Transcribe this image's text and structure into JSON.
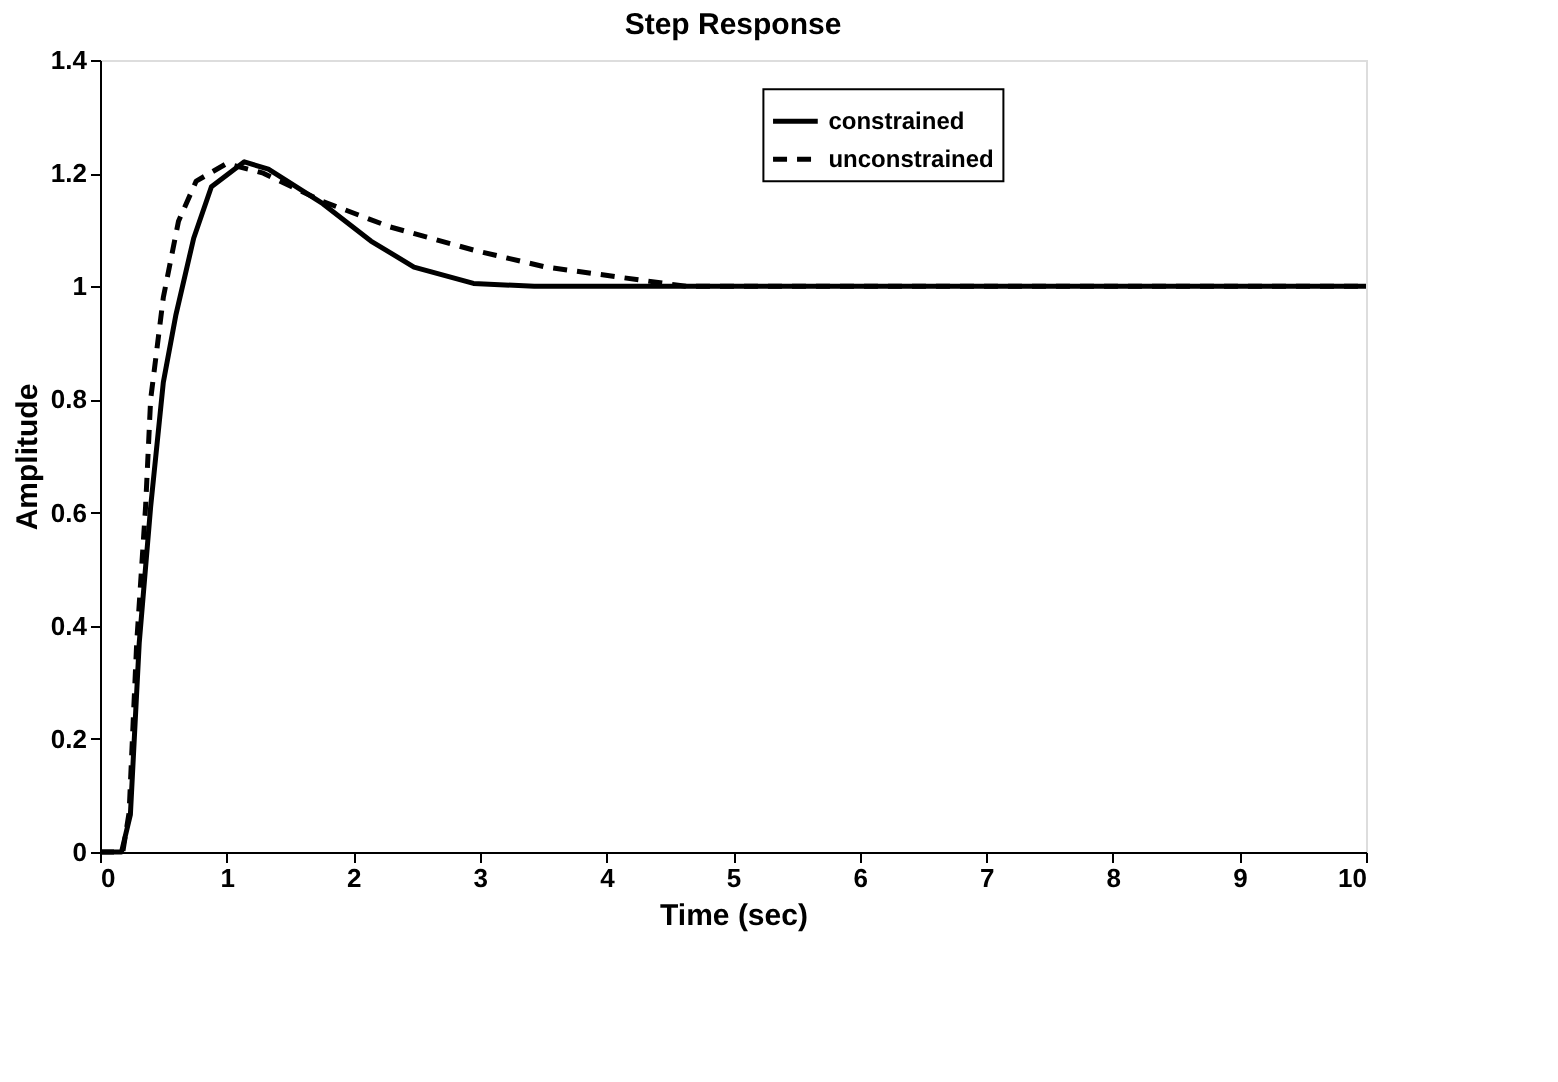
{
  "chart_data": {
    "type": "line",
    "title": "Step Response",
    "xlabel": "Time (sec)",
    "ylabel": "Amplitude",
    "xlim": [
      0,
      10
    ],
    "xticks": [
      0,
      1,
      2,
      3,
      4,
      5,
      6,
      7,
      8,
      9,
      10
    ],
    "ylim": [
      0,
      1.4
    ],
    "yticks": [
      0,
      0.2,
      0.4,
      0.6,
      0.8,
      1,
      1.2,
      1.4
    ],
    "grid": false,
    "legend": "top right",
    "marker": "none",
    "series": [
      {
        "name": "constrained",
        "color": "#000000",
        "line_style": "solid",
        "x": [
          0,
          0.17,
          0.24,
          0.31,
          0.4,
          0.5,
          0.6,
          0.74,
          0.88,
          1.14,
          1.33,
          1.76,
          2.14,
          2.48,
          2.95,
          3.43,
          5,
          7,
          10
        ],
        "values": [
          0,
          0,
          0.066,
          0.37,
          0.61,
          0.83,
          0.95,
          1.085,
          1.176,
          1.22,
          1.207,
          1.146,
          1.08,
          1.034,
          1.005,
          1,
          1,
          1,
          1
        ]
      },
      {
        "name": "unconstrained",
        "color": "#000000",
        "line_style": "dashed",
        "x": [
          0,
          0.18,
          0.23,
          0.29,
          0.36,
          0.4,
          0.5,
          0.62,
          0.76,
          1.0,
          1.29,
          1.76,
          2.29,
          2.95,
          3.52,
          4.14,
          4.63,
          7,
          10
        ],
        "values": [
          0,
          0,
          0.07,
          0.37,
          0.61,
          0.8,
          0.98,
          1.115,
          1.186,
          1.217,
          1.2,
          1.15,
          1.105,
          1.064,
          1.034,
          1.015,
          1,
          1,
          1
        ]
      }
    ]
  }
}
